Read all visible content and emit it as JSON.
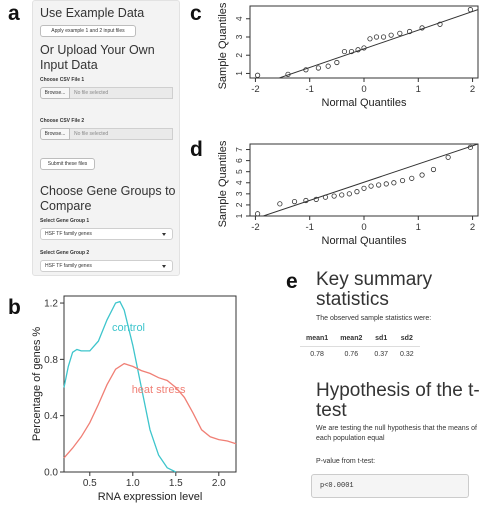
{
  "panel_letters": {
    "a": "a",
    "b": "b",
    "c": "c",
    "d": "d",
    "e": "e"
  },
  "sidebar": {
    "example_heading": "Use Example Data",
    "example_button": "Apply example 1 and 2 input files",
    "upload_heading": "Or Upload Your Own Input Data",
    "file1_label": "Choose CSV File 1",
    "file2_label": "Choose CSV File 2",
    "browse_label": "Browse...",
    "no_file_text": "No file selected",
    "submit_button": "Submit these files",
    "groups_heading": "Choose Gene Groups to Compare",
    "group1_label": "Select Gene Group 1",
    "group1_value": "HSF TF family genes",
    "group2_label": "Select Gene Group 2",
    "group2_value": "HSF TF family genes"
  },
  "summary": {
    "heading": "Key summary statistics",
    "observed_text": "The observed sample statistics were:",
    "table_headers": [
      "mean1",
      "mean2",
      "sd1",
      "sd2"
    ],
    "table_values": [
      "0.78",
      "0.76",
      "0.37",
      "0.32"
    ],
    "hypothesis_heading": "Hypothesis of the t-test",
    "hypothesis_text": "We are testing the null hypothesis that the means of each population equal",
    "pvalue_label": "P-value from t-test:",
    "pvalue": "p<0.0001"
  },
  "chart_data": [
    {
      "type": "line",
      "panel": "b",
      "xlabel": "RNA expression level",
      "ylabel": "Percentage of genes %",
      "xlim": [
        0.2,
        2.2
      ],
      "ylim": [
        0,
        1.25
      ],
      "x_ticks": [
        "0.5",
        "1.0",
        "1.5",
        "2.0"
      ],
      "y_ticks": [
        "0.0",
        "0.4",
        "0.8",
        "1.2"
      ],
      "series": [
        {
          "name": "control",
          "color": "#3ec5cc",
          "x": [
            0.2,
            0.25,
            0.3,
            0.35,
            0.4,
            0.5,
            0.6,
            0.7,
            0.8,
            0.85,
            0.9,
            1.0,
            1.1,
            1.2,
            1.3,
            1.4,
            1.5
          ],
          "y": [
            0.6,
            0.75,
            0.85,
            0.87,
            0.86,
            0.86,
            0.93,
            1.08,
            1.2,
            1.21,
            1.15,
            0.9,
            0.6,
            0.3,
            0.12,
            0.03,
            0.0
          ]
        },
        {
          "name": "heat stress",
          "color": "#f07f75",
          "x": [
            0.2,
            0.3,
            0.4,
            0.5,
            0.6,
            0.7,
            0.8,
            0.9,
            1.0,
            1.1,
            1.2,
            1.3,
            1.4,
            1.5,
            1.6,
            1.7,
            1.8,
            1.9,
            2.0,
            2.1,
            2.2
          ],
          "y": [
            0.1,
            0.17,
            0.25,
            0.35,
            0.48,
            0.62,
            0.73,
            0.77,
            0.75,
            0.72,
            0.7,
            0.67,
            0.65,
            0.6,
            0.53,
            0.42,
            0.3,
            0.25,
            0.23,
            0.22,
            0.2
          ]
        }
      ]
    },
    {
      "type": "scatter",
      "panel": "c",
      "xlabel": "Normal Quantiles",
      "ylabel": "Sample Quantiles",
      "xlim": [
        -2.1,
        2.1
      ],
      "ylim": [
        0.75,
        4.7
      ],
      "x_ticks": [
        "-2",
        "-1",
        "0",
        "1",
        "2"
      ],
      "y_ticks": [
        "1",
        "2",
        "3",
        "4"
      ],
      "ref_line": [
        [
          -2.1,
          0.2
        ],
        [
          2.1,
          4.5
        ]
      ],
      "x": [
        -1.96,
        -1.4,
        -1.07,
        -0.84,
        -0.66,
        -0.5,
        -0.36,
        -0.23,
        -0.11,
        0.0,
        0.11,
        0.23,
        0.36,
        0.5,
        0.66,
        0.84,
        1.07,
        1.4,
        1.96
      ],
      "y": [
        0.9,
        0.95,
        1.2,
        1.3,
        1.4,
        1.6,
        2.2,
        2.2,
        2.3,
        2.4,
        2.9,
        3.0,
        3.0,
        3.1,
        3.2,
        3.3,
        3.5,
        3.7,
        4.5
      ]
    },
    {
      "type": "scatter",
      "panel": "d",
      "xlabel": "Normal Quantiles",
      "ylabel": "Sample Quantiles",
      "xlim": [
        -2.1,
        2.1
      ],
      "ylim": [
        1,
        7.5
      ],
      "x_ticks": [
        "-2",
        "-1",
        "0",
        "1",
        "2"
      ],
      "y_ticks": [
        "1",
        "2",
        "3",
        "4",
        "5",
        "6",
        "7"
      ],
      "ref_line": [
        [
          -2.1,
          0.6
        ],
        [
          2.1,
          7.5
        ]
      ],
      "x": [
        -1.96,
        -1.55,
        -1.28,
        -1.07,
        -0.88,
        -0.71,
        -0.55,
        -0.41,
        -0.27,
        -0.13,
        0.0,
        0.13,
        0.27,
        0.41,
        0.55,
        0.71,
        0.88,
        1.07,
        1.28,
        1.55,
        1.96
      ],
      "y": [
        1.2,
        2.1,
        2.3,
        2.4,
        2.5,
        2.7,
        2.8,
        2.9,
        3.0,
        3.2,
        3.5,
        3.7,
        3.8,
        3.9,
        4.0,
        4.2,
        4.4,
        4.7,
        5.2,
        6.3,
        7.2
      ]
    }
  ]
}
